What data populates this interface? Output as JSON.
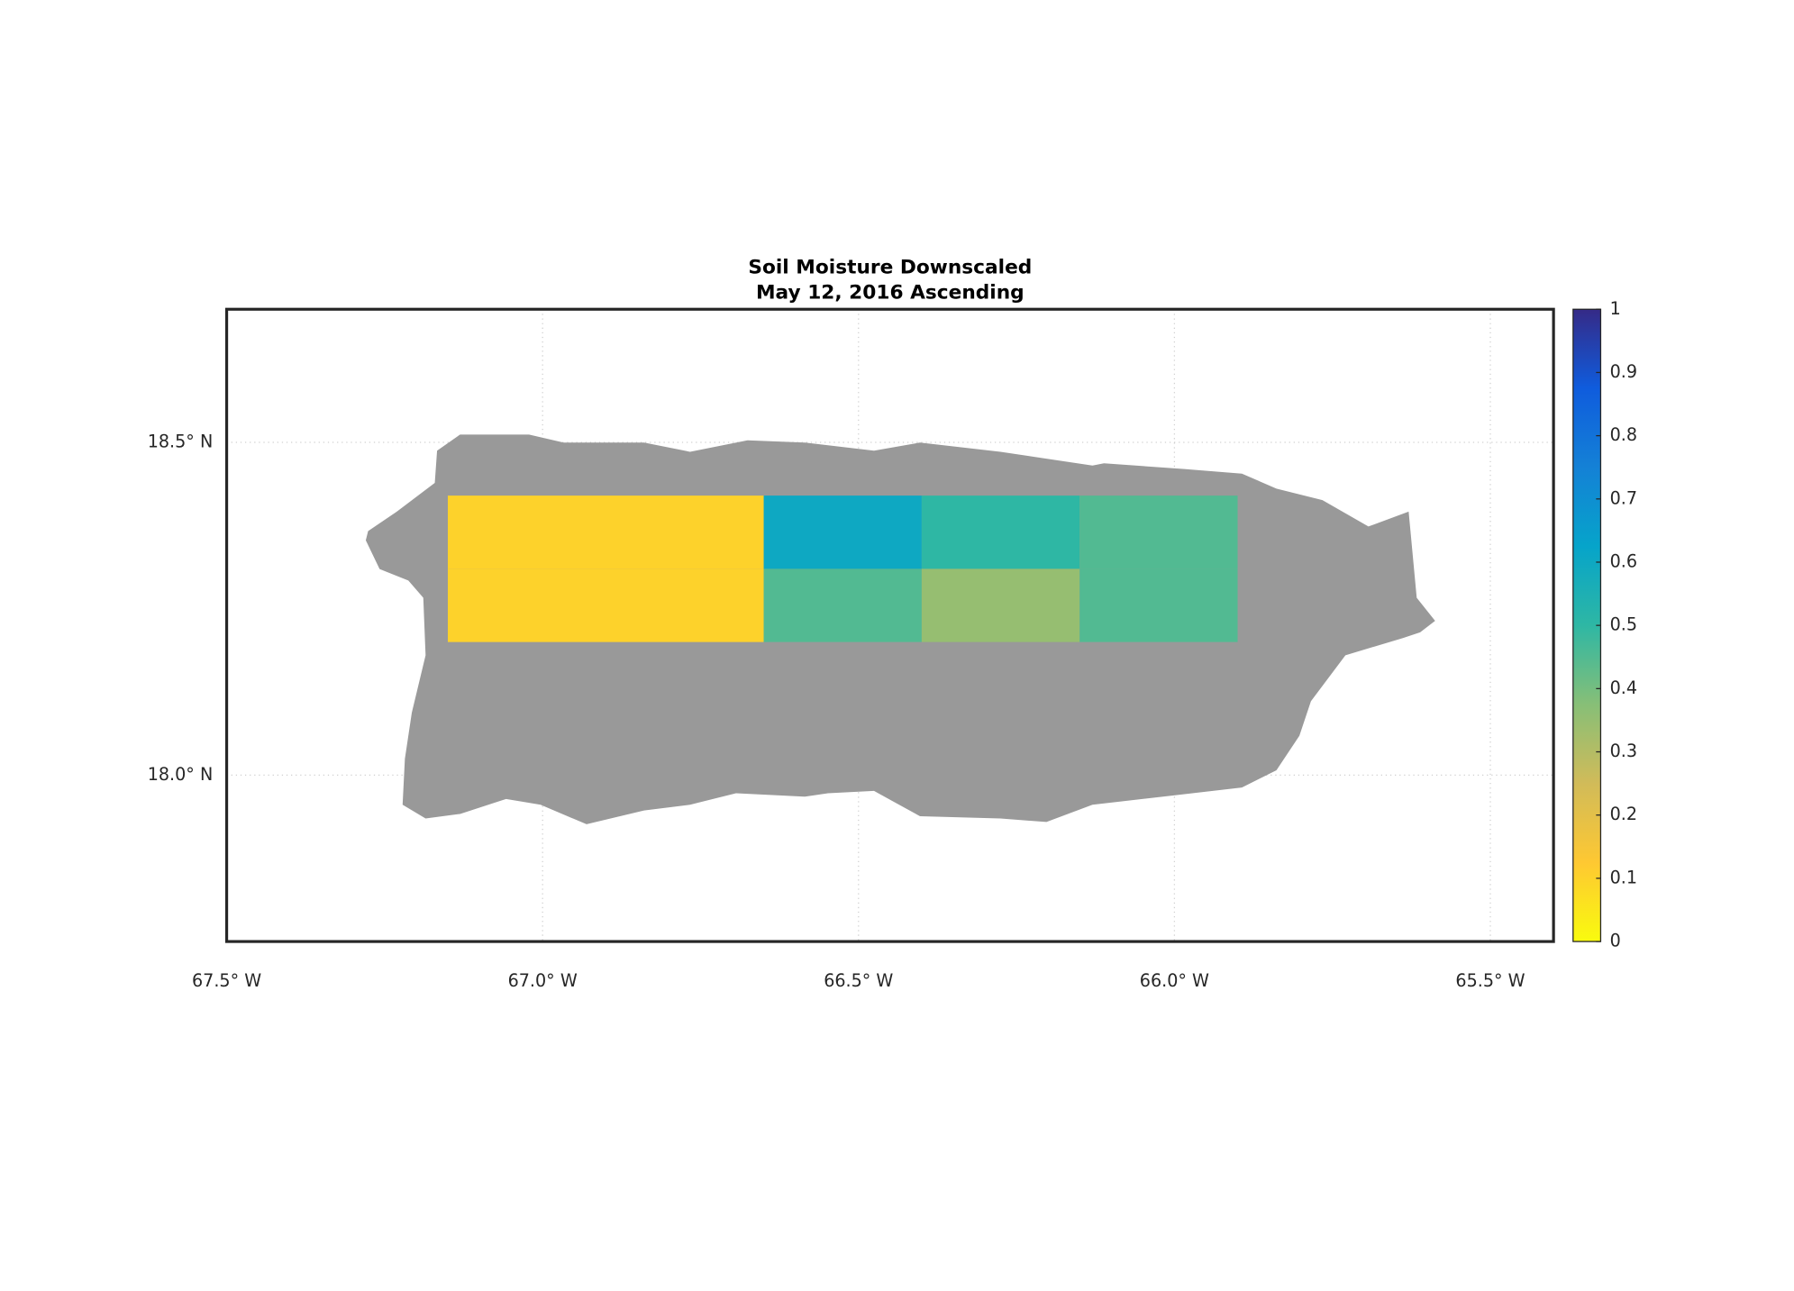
{
  "chart_data": {
    "type": "map-grid",
    "title": "Soil Moisture Downscaled",
    "subtitle": "May 12, 2016 Ascending",
    "xlim": [
      -67.5,
      -65.4
    ],
    "ylim": [
      17.75,
      18.7
    ],
    "xticks": [
      {
        "value": -67.5,
        "label": "67.5° W"
      },
      {
        "value": -67.0,
        "label": "67.0° W"
      },
      {
        "value": -66.5,
        "label": "66.5° W"
      },
      {
        "value": -66.0,
        "label": "66.0° W"
      },
      {
        "value": -65.5,
        "label": "65.5° W"
      }
    ],
    "yticks": [
      {
        "value": 18.0,
        "label": "18.0° N"
      },
      {
        "value": 18.5,
        "label": "18.5° N"
      }
    ],
    "grid": true,
    "land_color": "#999999",
    "lon_edges": [
      -67.15,
      -66.65,
      -66.4,
      -66.15,
      -65.9
    ],
    "lat_edges": [
      18.2,
      18.31,
      18.42
    ],
    "values": [
      [
        0.1,
        0.45,
        0.35,
        0.45
      ],
      [
        0.1,
        0.6,
        0.5,
        0.45
      ]
    ],
    "clim": [
      0,
      1
    ],
    "cticks": [
      0,
      0.1,
      0.2,
      0.3,
      0.4,
      0.5,
      0.6,
      0.7,
      0.8,
      0.9,
      1
    ],
    "colormap": [
      "#f9fb0e",
      "#fec832",
      "#d1bb59",
      "#87bf77",
      "#2eb7a4",
      "#06a4ca",
      "#1481d6",
      "#0f5cdd",
      "#352a87"
    ]
  }
}
